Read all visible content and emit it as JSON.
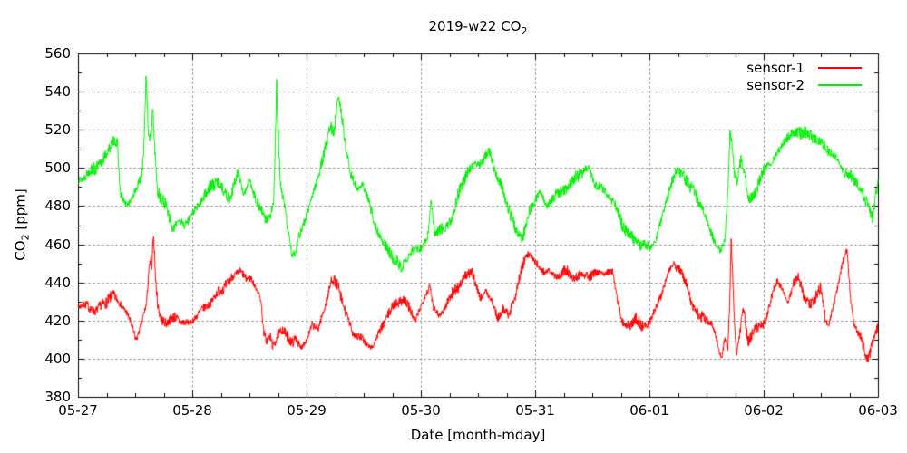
{
  "chart_data": {
    "type": "line",
    "title_main": "2019-w22 CO",
    "title_sub": "2",
    "xlabel": "Date [month-mday]",
    "ylabel_main": "CO",
    "ylabel_sub": "2",
    "ylabel_unit": " [ppm]",
    "ylim": [
      380,
      560
    ],
    "yticks": [
      380,
      400,
      420,
      440,
      460,
      480,
      500,
      520,
      540,
      560
    ],
    "minor_ytick_step": 10,
    "xlim_days": [
      0,
      7
    ],
    "xticks": [
      "05-27",
      "05-28",
      "05-29",
      "05-30",
      "05-31",
      "06-01",
      "06-02",
      "06-03"
    ],
    "minor_xticks_per_day": 4,
    "grid": "dashed-gray-at-major-ticks",
    "legend_position": "top-right-inside",
    "colors": {
      "background": "#ffffff",
      "border": "#000000",
      "grid": "#9e9e9e",
      "text": "#000000"
    },
    "anchor_units": [
      "days_since_05-27",
      "ppm"
    ],
    "series": [
      {
        "name": "sensor-1",
        "color": "#ff0000",
        "noise_amp": 2.4,
        "seed": 7,
        "anchors": [
          [
            0.0,
            427
          ],
          [
            0.08,
            428
          ],
          [
            0.16,
            425
          ],
          [
            0.24,
            429
          ],
          [
            0.3,
            434
          ],
          [
            0.36,
            430
          ],
          [
            0.42,
            424
          ],
          [
            0.47,
            417
          ],
          [
            0.51,
            411
          ],
          [
            0.56,
            419
          ],
          [
            0.6,
            428
          ],
          [
            0.62,
            446
          ],
          [
            0.638,
            452
          ],
          [
            0.648,
            447
          ],
          [
            0.658,
            467
          ],
          [
            0.668,
            458
          ],
          [
            0.68,
            440
          ],
          [
            0.7,
            427
          ],
          [
            0.73,
            421
          ],
          [
            0.78,
            419
          ],
          [
            0.85,
            421
          ],
          [
            0.92,
            420
          ],
          [
            0.98,
            418
          ],
          [
            1.05,
            423
          ],
          [
            1.12,
            428
          ],
          [
            1.2,
            432
          ],
          [
            1.28,
            438
          ],
          [
            1.35,
            443
          ],
          [
            1.42,
            446
          ],
          [
            1.47,
            441
          ],
          [
            1.52,
            443
          ],
          [
            1.57,
            436
          ],
          [
            1.6,
            430
          ],
          [
            1.625,
            413
          ],
          [
            1.65,
            409
          ],
          [
            1.68,
            412
          ],
          [
            1.71,
            406
          ],
          [
            1.75,
            413
          ],
          [
            1.79,
            416
          ],
          [
            1.83,
            411
          ],
          [
            1.87,
            407
          ],
          [
            1.91,
            412
          ],
          [
            1.95,
            406
          ],
          [
            2.0,
            409
          ],
          [
            2.05,
            418
          ],
          [
            2.1,
            415
          ],
          [
            2.16,
            428
          ],
          [
            2.22,
            441
          ],
          [
            2.28,
            437
          ],
          [
            2.34,
            425
          ],
          [
            2.4,
            414
          ],
          [
            2.46,
            411
          ],
          [
            2.52,
            408
          ],
          [
            2.58,
            407
          ],
          [
            2.64,
            413
          ],
          [
            2.7,
            422
          ],
          [
            2.77,
            429
          ],
          [
            2.84,
            431
          ],
          [
            2.9,
            426
          ],
          [
            2.95,
            421
          ],
          [
            3.0,
            427
          ],
          [
            3.05,
            434
          ],
          [
            3.08,
            438
          ],
          [
            3.11,
            427
          ],
          [
            3.16,
            423
          ],
          [
            3.22,
            428
          ],
          [
            3.3,
            436
          ],
          [
            3.38,
            443
          ],
          [
            3.45,
            445
          ],
          [
            3.52,
            431
          ],
          [
            3.57,
            437
          ],
          [
            3.62,
            430
          ],
          [
            3.67,
            420
          ],
          [
            3.72,
            427
          ],
          [
            3.77,
            423
          ],
          [
            3.82,
            432
          ],
          [
            3.87,
            444
          ],
          [
            3.92,
            453
          ],
          [
            3.96,
            456
          ],
          [
            4.0,
            451
          ],
          [
            4.06,
            445
          ],
          [
            4.12,
            446
          ],
          [
            4.18,
            443
          ],
          [
            4.25,
            446
          ],
          [
            4.32,
            443
          ],
          [
            4.4,
            445
          ],
          [
            4.48,
            443
          ],
          [
            4.55,
            445
          ],
          [
            4.62,
            446
          ],
          [
            4.68,
            444
          ],
          [
            4.72,
            432
          ],
          [
            4.76,
            420
          ],
          [
            4.82,
            417
          ],
          [
            4.88,
            421
          ],
          [
            4.93,
            416
          ],
          [
            4.98,
            419
          ],
          [
            5.04,
            424
          ],
          [
            5.1,
            432
          ],
          [
            5.16,
            445
          ],
          [
            5.21,
            450
          ],
          [
            5.26,
            447
          ],
          [
            5.32,
            439
          ],
          [
            5.38,
            428
          ],
          [
            5.44,
            422
          ],
          [
            5.5,
            420
          ],
          [
            5.55,
            418
          ],
          [
            5.6,
            408
          ],
          [
            5.63,
            400
          ],
          [
            5.66,
            411
          ],
          [
            5.685,
            403
          ],
          [
            5.705,
            432
          ],
          [
            5.716,
            462
          ],
          [
            5.73,
            441
          ],
          [
            5.75,
            411
          ],
          [
            5.765,
            403
          ],
          [
            5.8,
            418
          ],
          [
            5.825,
            427
          ],
          [
            5.86,
            409
          ],
          [
            5.9,
            413
          ],
          [
            5.95,
            416
          ],
          [
            6.0,
            419
          ],
          [
            6.06,
            430
          ],
          [
            6.12,
            441
          ],
          [
            6.17,
            436
          ],
          [
            6.21,
            429
          ],
          [
            6.26,
            440
          ],
          [
            6.3,
            443
          ],
          [
            6.35,
            432
          ],
          [
            6.41,
            430
          ],
          [
            6.46,
            432
          ],
          [
            6.5,
            437
          ],
          [
            6.54,
            421
          ],
          [
            6.57,
            417
          ],
          [
            6.61,
            428
          ],
          [
            6.65,
            440
          ],
          [
            6.69,
            450
          ],
          [
            6.73,
            456
          ],
          [
            6.76,
            431
          ],
          [
            6.79,
            420
          ],
          [
            6.83,
            414
          ],
          [
            6.87,
            407
          ],
          [
            6.9,
            399
          ],
          [
            6.93,
            403
          ],
          [
            6.96,
            410
          ],
          [
            7.0,
            417
          ]
        ]
      },
      {
        "name": "sensor-2",
        "color": "#00ee00",
        "noise_amp": 2.8,
        "seed": 13,
        "anchors": [
          [
            0.0,
            494
          ],
          [
            0.07,
            496
          ],
          [
            0.14,
            499
          ],
          [
            0.2,
            503
          ],
          [
            0.26,
            508
          ],
          [
            0.31,
            515
          ],
          [
            0.345,
            512
          ],
          [
            0.37,
            486
          ],
          [
            0.42,
            482
          ],
          [
            0.47,
            483
          ],
          [
            0.52,
            489
          ],
          [
            0.555,
            497
          ],
          [
            0.575,
            510
          ],
          [
            0.595,
            547
          ],
          [
            0.615,
            520
          ],
          [
            0.635,
            514
          ],
          [
            0.655,
            531
          ],
          [
            0.675,
            507
          ],
          [
            0.695,
            488
          ],
          [
            0.73,
            482
          ],
          [
            0.78,
            480
          ],
          [
            0.83,
            468
          ],
          [
            0.88,
            472
          ],
          [
            0.93,
            470
          ],
          [
            0.98,
            474
          ],
          [
            1.04,
            480
          ],
          [
            1.1,
            484
          ],
          [
            1.16,
            490
          ],
          [
            1.22,
            494
          ],
          [
            1.28,
            487
          ],
          [
            1.33,
            483
          ],
          [
            1.4,
            498
          ],
          [
            1.45,
            487
          ],
          [
            1.5,
            493
          ],
          [
            1.55,
            484
          ],
          [
            1.6,
            479
          ],
          [
            1.64,
            473
          ],
          [
            1.68,
            474
          ],
          [
            1.71,
            481
          ],
          [
            1.725,
            506
          ],
          [
            1.737,
            543
          ],
          [
            1.75,
            521
          ],
          [
            1.765,
            498
          ],
          [
            1.78,
            486
          ],
          [
            1.81,
            480
          ],
          [
            1.84,
            468
          ],
          [
            1.87,
            455
          ],
          [
            1.9,
            454
          ],
          [
            1.93,
            463
          ],
          [
            1.97,
            470
          ],
          [
            2.02,
            479
          ],
          [
            2.07,
            490
          ],
          [
            2.13,
            501
          ],
          [
            2.17,
            511
          ],
          [
            2.21,
            524
          ],
          [
            2.24,
            518
          ],
          [
            2.27,
            537
          ],
          [
            2.3,
            530
          ],
          [
            2.34,
            512
          ],
          [
            2.38,
            498
          ],
          [
            2.44,
            489
          ],
          [
            2.49,
            492
          ],
          [
            2.54,
            482
          ],
          [
            2.6,
            471
          ],
          [
            2.66,
            462
          ],
          [
            2.72,
            456
          ],
          [
            2.78,
            451
          ],
          [
            2.82,
            448
          ],
          [
            2.87,
            452
          ],
          [
            2.92,
            455
          ],
          [
            2.97,
            457
          ],
          [
            3.02,
            460
          ],
          [
            3.06,
            464
          ],
          [
            3.09,
            484
          ],
          [
            3.12,
            466
          ],
          [
            3.17,
            467
          ],
          [
            3.22,
            469
          ],
          [
            3.27,
            474
          ],
          [
            3.33,
            486
          ],
          [
            3.4,
            497
          ],
          [
            3.47,
            503
          ],
          [
            3.54,
            502
          ],
          [
            3.6,
            509
          ],
          [
            3.66,
            497
          ],
          [
            3.72,
            488
          ],
          [
            3.78,
            476
          ],
          [
            3.84,
            466
          ],
          [
            3.89,
            464
          ],
          [
            3.95,
            476
          ],
          [
            4.0,
            483
          ],
          [
            4.04,
            489
          ],
          [
            4.1,
            480
          ],
          [
            4.16,
            484
          ],
          [
            4.22,
            487
          ],
          [
            4.28,
            491
          ],
          [
            4.34,
            494
          ],
          [
            4.41,
            497
          ],
          [
            4.47,
            501
          ],
          [
            4.53,
            491
          ],
          [
            4.59,
            488
          ],
          [
            4.65,
            486
          ],
          [
            4.7,
            481
          ],
          [
            4.76,
            470
          ],
          [
            4.82,
            465
          ],
          [
            4.88,
            462
          ],
          [
            4.94,
            459
          ],
          [
            5.0,
            458
          ],
          [
            5.06,
            464
          ],
          [
            5.12,
            476
          ],
          [
            5.18,
            490
          ],
          [
            5.24,
            498
          ],
          [
            5.29,
            498
          ],
          [
            5.35,
            490
          ],
          [
            5.41,
            485
          ],
          [
            5.47,
            478
          ],
          [
            5.53,
            468
          ],
          [
            5.58,
            460
          ],
          [
            5.62,
            455
          ],
          [
            5.66,
            463
          ],
          [
            5.685,
            487
          ],
          [
            5.705,
            519
          ],
          [
            5.72,
            514
          ],
          [
            5.745,
            496
          ],
          [
            5.77,
            492
          ],
          [
            5.8,
            504
          ],
          [
            5.83,
            497
          ],
          [
            5.87,
            483
          ],
          [
            5.91,
            487
          ],
          [
            5.95,
            491
          ],
          [
            6.0,
            498
          ],
          [
            6.06,
            503
          ],
          [
            6.12,
            508
          ],
          [
            6.18,
            514
          ],
          [
            6.24,
            517
          ],
          [
            6.3,
            520
          ],
          [
            6.36,
            518
          ],
          [
            6.42,
            516
          ],
          [
            6.48,
            515
          ],
          [
            6.54,
            511
          ],
          [
            6.6,
            507
          ],
          [
            6.66,
            502
          ],
          [
            6.72,
            498
          ],
          [
            6.78,
            494
          ],
          [
            6.84,
            490
          ],
          [
            6.9,
            482
          ],
          [
            6.95,
            475
          ],
          [
            7.0,
            492
          ]
        ]
      }
    ]
  }
}
